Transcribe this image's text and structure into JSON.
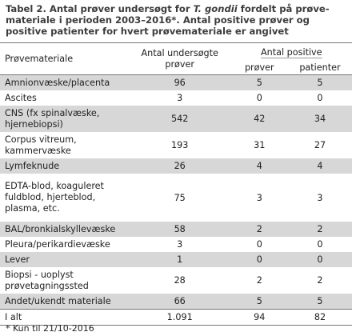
{
  "caption": {
    "part1": "Tabel 2. Antal prøver undersøgt for ",
    "species": "T. gondii",
    "part2": " fordelt på prøve-materiale i perioden 2003–2016*. Antal positive prøver og positive patienter for hvert prøvemateriale er angivet"
  },
  "table": {
    "headers": {
      "material": "Prøvemateriale",
      "examined": "Antal undersøgte prøver",
      "positive": "Antal positive",
      "samples": "prøver",
      "patients": "patienter"
    },
    "rows": [
      {
        "material": "Amnionvæske/placenta",
        "examined": "96",
        "samples": "5",
        "patients": "5"
      },
      {
        "material": "Ascites",
        "examined": "3",
        "samples": "0",
        "patients": "0"
      },
      {
        "material": "CNS (fx spinalvæske, hjernebiopsi)",
        "examined": "542",
        "samples": "42",
        "patients": "34"
      },
      {
        "material": "Corpus vitreum, kammervæske",
        "examined": "193",
        "samples": "31",
        "patients": "27"
      },
      {
        "material": "Lymfeknude",
        "examined": "26",
        "samples": "4",
        "patients": "4"
      },
      {
        "material": "EDTA-blod, koaguleret fuldblod, hjerteblod, plasma, etc.",
        "examined": "75",
        "samples": "3",
        "patients": "3"
      },
      {
        "material": "BAL/bronkialskyllevæske",
        "examined": "58",
        "samples": "2",
        "patients": "2"
      },
      {
        "material": "Pleura/perikardievæske",
        "examined": "3",
        "samples": "0",
        "patients": "0"
      },
      {
        "material": "Lever",
        "examined": "1",
        "samples": "0",
        "patients": "0"
      },
      {
        "material": "Biopsi - uoplyst prøvetagningssted",
        "examined": "28",
        "samples": "2",
        "patients": "2"
      },
      {
        "material": "Andet/ukendt materiale",
        "examined": "66",
        "samples": "5",
        "patients": "5"
      }
    ],
    "total": {
      "label": "I alt",
      "examined": "1.091",
      "samples": "94",
      "patients": "82"
    }
  },
  "footnote": "* Kun til 21/10-2016",
  "colors": {
    "shade": "#d7d7d7",
    "rule": "#777777"
  }
}
